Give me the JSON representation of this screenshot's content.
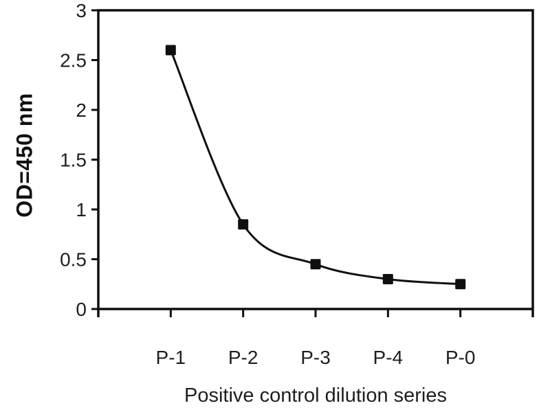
{
  "chart_data": {
    "type": "line",
    "title": "",
    "categories": [
      "P-1",
      "P-2",
      "P-3",
      "P-4",
      "P-0"
    ],
    "values": [
      2.6,
      0.85,
      0.45,
      0.3,
      0.25
    ],
    "xlabel": "Positive control dilution series",
    "ylabel": "OD=450 nm",
    "ylim": [
      0,
      3
    ],
    "yticks": [
      0,
      0.5,
      1,
      1.5,
      2,
      2.5,
      3
    ],
    "ytick_labels": [
      "0",
      "0.5",
      "1",
      "1.5",
      "2",
      "2.5",
      "3"
    ],
    "grid": false,
    "legend": "none",
    "marker": "filled-square",
    "line_style": "smoothed",
    "line_color": "#0f0f0f",
    "marker_color": "#0f0f0f",
    "axis_color": "#0f0f0f",
    "text_color": "#1f1f1f",
    "background_color": "#ffffff"
  }
}
